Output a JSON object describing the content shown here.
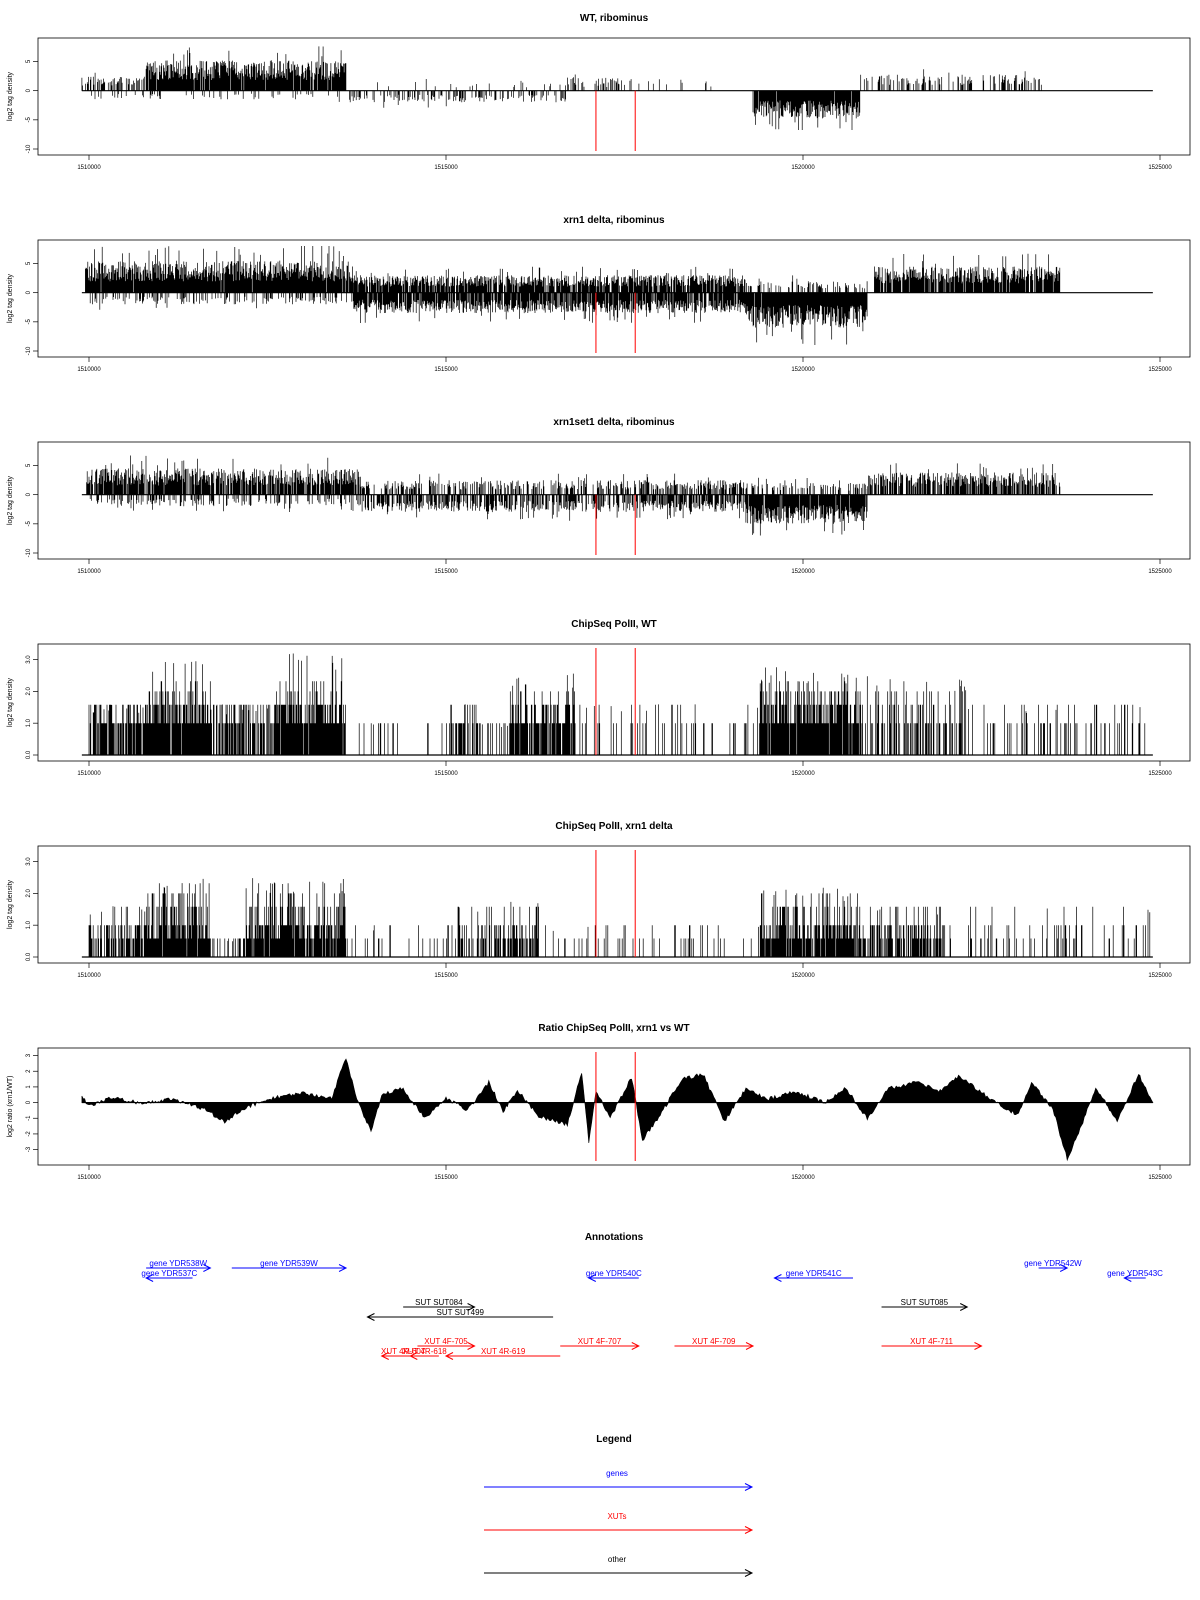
{
  "colors": {
    "gene": "#0000ff",
    "xut": "#ff0000",
    "other": "#000000",
    "marker": "#ff0000",
    "signal": "#000000"
  },
  "chart_data": [
    {
      "type": "bar",
      "title": "WT, ribominus",
      "ylabel": "log2 tag density",
      "xlim": [
        1510000,
        1525000
      ],
      "ylim": [
        -10,
        8
      ],
      "yticks": [
        "-10",
        "-5",
        "0",
        "5"
      ],
      "xticks": [
        "1510000",
        "1515000",
        "1520000",
        "1525000"
      ],
      "red_markers": [
        1517100,
        1517650
      ],
      "regions": [
        {
          "start": 1509900,
          "end": 1510800,
          "sign": 1,
          "amp": 2.5,
          "density": 0.5
        },
        {
          "start": 1510800,
          "end": 1513600,
          "sign": 1,
          "amp": 5.2,
          "density": 0.95
        },
        {
          "start": 1510000,
          "end": 1513600,
          "sign": -1,
          "amp": 1.5,
          "density": 0.12
        },
        {
          "start": 1513600,
          "end": 1516700,
          "sign": -1,
          "amp": 2.0,
          "density": 0.35
        },
        {
          "start": 1514000,
          "end": 1517300,
          "sign": 1,
          "amp": 1.5,
          "density": 0.08
        },
        {
          "start": 1516700,
          "end": 1517500,
          "sign": 1,
          "amp": 2.3,
          "density": 0.3
        },
        {
          "start": 1517500,
          "end": 1518800,
          "sign": 1,
          "amp": 2.0,
          "density": 0.08
        },
        {
          "start": 1519300,
          "end": 1520800,
          "sign": -1,
          "amp": 4.8,
          "density": 0.95
        },
        {
          "start": 1520800,
          "end": 1523500,
          "sign": 1,
          "amp": 2.8,
          "density": 0.3
        }
      ]
    },
    {
      "type": "bar",
      "title": "xrn1 delta, ribominus",
      "ylabel": "log2 tag density",
      "xlim": [
        1510000,
        1525000
      ],
      "ylim": [
        -10,
        8
      ],
      "yticks": [
        "-10",
        "-5",
        "0",
        "5"
      ],
      "xticks": [
        "1510000",
        "1515000",
        "1520000",
        "1525000"
      ],
      "red_markers": [
        1517100,
        1517650
      ],
      "regions": [
        {
          "start": 1509950,
          "end": 1513700,
          "sign": 1,
          "amp": 5.5,
          "density": 0.98
        },
        {
          "start": 1510000,
          "end": 1513700,
          "sign": -1,
          "amp": 2.0,
          "density": 0.3
        },
        {
          "start": 1513700,
          "end": 1519200,
          "sign": 1,
          "amp": 3.0,
          "density": 0.85
        },
        {
          "start": 1513700,
          "end": 1519200,
          "sign": -1,
          "amp": 3.5,
          "density": 0.85
        },
        {
          "start": 1519200,
          "end": 1520900,
          "sign": -1,
          "amp": 6.0,
          "density": 0.98
        },
        {
          "start": 1519200,
          "end": 1520900,
          "sign": 1,
          "amp": 2.0,
          "density": 0.3
        },
        {
          "start": 1521000,
          "end": 1523600,
          "sign": 1,
          "amp": 4.5,
          "density": 0.9
        }
      ]
    },
    {
      "type": "bar",
      "title": "xrn1set1 delta, ribominus",
      "ylabel": "log2 tag density",
      "xlim": [
        1510000,
        1525000
      ],
      "ylim": [
        -10,
        8
      ],
      "yticks": [
        "-10",
        "-5",
        "0",
        "5"
      ],
      "xticks": [
        "1510000",
        "1515000",
        "1520000",
        "1525000"
      ],
      "red_markers": [
        1517100,
        1517650
      ],
      "regions": [
        {
          "start": 1509950,
          "end": 1513800,
          "sign": 1,
          "amp": 4.5,
          "density": 0.85
        },
        {
          "start": 1510000,
          "end": 1513800,
          "sign": -1,
          "amp": 2.0,
          "density": 0.3
        },
        {
          "start": 1513800,
          "end": 1519200,
          "sign": 1,
          "amp": 2.5,
          "density": 0.5
        },
        {
          "start": 1513800,
          "end": 1519200,
          "sign": -1,
          "amp": 3.0,
          "density": 0.6
        },
        {
          "start": 1519200,
          "end": 1520900,
          "sign": -1,
          "amp": 5.0,
          "density": 0.95
        },
        {
          "start": 1519200,
          "end": 1520900,
          "sign": 1,
          "amp": 2.0,
          "density": 0.3
        },
        {
          "start": 1520900,
          "end": 1523600,
          "sign": 1,
          "amp": 3.8,
          "density": 0.7
        }
      ]
    },
    {
      "type": "bar",
      "title": "ChipSeq PolII, WT",
      "ylabel": "log2 tag density",
      "xlim": [
        1510000,
        1525000
      ],
      "ylim": [
        0,
        3.3
      ],
      "yticks": [
        "0.0",
        "1.0",
        "2.0",
        "3.0"
      ],
      "xticks": [
        "1510000",
        "1515000",
        "1520000",
        "1525000"
      ],
      "red_markers": [
        1517100,
        1517650
      ],
      "regions": [
        {
          "start": 1510000,
          "end": 1510800,
          "sign": 1,
          "amp": 1.6,
          "density": 0.8,
          "quant": [
            1.0,
            1.58
          ]
        },
        {
          "start": 1510800,
          "end": 1511700,
          "sign": 1,
          "amp": 3.2,
          "density": 0.98,
          "quant": [
            1.0,
            1.58,
            2.0,
            2.32
          ]
        },
        {
          "start": 1511700,
          "end": 1512600,
          "sign": 1,
          "amp": 1.6,
          "density": 0.7,
          "quant": [
            1.0,
            1.58
          ]
        },
        {
          "start": 1512600,
          "end": 1513600,
          "sign": 1,
          "amp": 3.3,
          "density": 0.98,
          "quant": [
            1.0,
            1.58,
            2.0,
            2.32
          ]
        },
        {
          "start": 1513600,
          "end": 1515000,
          "sign": 1,
          "amp": 1.0,
          "density": 0.1,
          "quant": [
            1.0
          ]
        },
        {
          "start": 1515000,
          "end": 1515500,
          "sign": 1,
          "amp": 1.6,
          "density": 0.6,
          "quant": [
            1.0,
            1.58
          ]
        },
        {
          "start": 1515500,
          "end": 1515900,
          "sign": 1,
          "amp": 1.0,
          "density": 0.2,
          "quant": [
            1.0
          ]
        },
        {
          "start": 1515900,
          "end": 1516800,
          "sign": 1,
          "amp": 2.6,
          "density": 0.8,
          "quant": [
            1.0,
            1.58,
            2.0
          ]
        },
        {
          "start": 1516800,
          "end": 1519400,
          "sign": 1,
          "amp": 1.6,
          "density": 0.15,
          "quant": [
            1.0,
            1.58
          ]
        },
        {
          "start": 1519400,
          "end": 1520800,
          "sign": 1,
          "amp": 2.8,
          "density": 0.95,
          "quant": [
            1.0,
            1.58,
            2.0,
            2.32
          ]
        },
        {
          "start": 1520800,
          "end": 1522300,
          "sign": 1,
          "amp": 2.5,
          "density": 0.55,
          "quant": [
            1.0,
            1.58,
            2.0
          ]
        },
        {
          "start": 1522300,
          "end": 1524800,
          "sign": 1,
          "amp": 1.6,
          "density": 0.2,
          "quant": [
            1.0,
            1.58
          ]
        }
      ]
    },
    {
      "type": "bar",
      "title": "ChipSeq PolII, xrn1 delta",
      "ylabel": "log2 tag density",
      "xlim": [
        1510000,
        1525000
      ],
      "ylim": [
        0,
        3.3
      ],
      "yticks": [
        "0.0",
        "1.0",
        "2.0",
        "3.0"
      ],
      "xticks": [
        "1510000",
        "1515000",
        "1520000",
        "1525000"
      ],
      "red_markers": [
        1517100,
        1517650
      ],
      "regions": [
        {
          "start": 1510000,
          "end": 1510800,
          "sign": 1,
          "amp": 1.6,
          "density": 0.6,
          "quant": [
            0.58,
            1.0,
            1.58
          ]
        },
        {
          "start": 1510800,
          "end": 1511700,
          "sign": 1,
          "amp": 2.5,
          "density": 0.98,
          "quant": [
            0.58,
            1.0,
            1.58,
            2.0,
            2.32
          ]
        },
        {
          "start": 1511700,
          "end": 1512200,
          "sign": 1,
          "amp": 0.6,
          "density": 0.3,
          "quant": [
            0.58
          ]
        },
        {
          "start": 1512200,
          "end": 1513600,
          "sign": 1,
          "amp": 2.5,
          "density": 0.95,
          "quant": [
            0.58,
            1.0,
            1.58,
            2.0,
            2.32
          ]
        },
        {
          "start": 1513600,
          "end": 1515000,
          "sign": 1,
          "amp": 1.0,
          "density": 0.1,
          "quant": [
            0.58,
            1.0
          ]
        },
        {
          "start": 1515000,
          "end": 1515900,
          "sign": 1,
          "amp": 1.6,
          "density": 0.4,
          "quant": [
            0.58,
            1.0,
            1.58
          ]
        },
        {
          "start": 1515900,
          "end": 1516300,
          "sign": 1,
          "amp": 1.8,
          "density": 0.8,
          "quant": [
            0.58,
            1.0,
            1.58
          ]
        },
        {
          "start": 1516300,
          "end": 1519400,
          "sign": 1,
          "amp": 1.0,
          "density": 0.12,
          "quant": [
            0.58,
            1.0
          ]
        },
        {
          "start": 1519400,
          "end": 1520800,
          "sign": 1,
          "amp": 2.2,
          "density": 0.9,
          "quant": [
            0.58,
            1.0,
            1.58,
            2.0
          ]
        },
        {
          "start": 1520800,
          "end": 1522000,
          "sign": 1,
          "amp": 1.6,
          "density": 0.6,
          "quant": [
            0.58,
            1.0,
            1.58
          ]
        },
        {
          "start": 1522000,
          "end": 1524900,
          "sign": 1,
          "amp": 1.6,
          "density": 0.15,
          "quant": [
            0.58,
            1.0,
            1.58
          ]
        }
      ]
    },
    {
      "type": "area",
      "title": "Ratio ChipSeq PolII, xrn1 vs WT",
      "ylabel": "log2 ratio (xrn1/WT)",
      "xlim": [
        1510000,
        1525000
      ],
      "ylim": [
        -3.6,
        3.1
      ],
      "yticks": [
        "-3",
        "-2",
        "-1",
        "0",
        "1",
        "2",
        "3"
      ],
      "xticks": [
        "1510000",
        "1515000",
        "1520000",
        "1525000"
      ],
      "red_markers": [
        1517100,
        1517650
      ],
      "profile": [
        [
          1509900,
          0.4
        ],
        [
          1510000,
          -0.2
        ],
        [
          1510300,
          0.3
        ],
        [
          1510700,
          0.0
        ],
        [
          1511200,
          0.2
        ],
        [
          1511600,
          -0.4
        ],
        [
          1511900,
          -1.2
        ],
        [
          1512200,
          -0.3
        ],
        [
          1512600,
          0.3
        ],
        [
          1513000,
          0.6
        ],
        [
          1513400,
          0.3
        ],
        [
          1513600,
          2.9
        ],
        [
          1513750,
          0.2
        ],
        [
          1513950,
          -1.8
        ],
        [
          1514100,
          0.5
        ],
        [
          1514400,
          0.9
        ],
        [
          1514700,
          -1.0
        ],
        [
          1515000,
          0.3
        ],
        [
          1515300,
          -0.5
        ],
        [
          1515600,
          1.3
        ],
        [
          1515800,
          -0.6
        ],
        [
          1516000,
          0.8
        ],
        [
          1516300,
          -0.9
        ],
        [
          1516700,
          -1.4
        ],
        [
          1516900,
          1.9
        ],
        [
          1517000,
          -2.5
        ],
        [
          1517100,
          0.8
        ],
        [
          1517300,
          -1.0
        ],
        [
          1517600,
          1.6
        ],
        [
          1517750,
          -2.4
        ],
        [
          1518000,
          -0.8
        ],
        [
          1518300,
          1.5
        ],
        [
          1518600,
          1.8
        ],
        [
          1518900,
          -1.2
        ],
        [
          1519200,
          0.9
        ],
        [
          1519500,
          0.2
        ],
        [
          1519900,
          0.7
        ],
        [
          1520300,
          0.0
        ],
        [
          1520600,
          0.9
        ],
        [
          1520900,
          -1.0
        ],
        [
          1521200,
          0.9
        ],
        [
          1521600,
          1.3
        ],
        [
          1521900,
          0.7
        ],
        [
          1522200,
          1.7
        ],
        [
          1522600,
          0.3
        ],
        [
          1523000,
          -0.8
        ],
        [
          1523200,
          1.3
        ],
        [
          1523500,
          -0.4
        ],
        [
          1523700,
          -3.6
        ],
        [
          1523900,
          -1.5
        ],
        [
          1524100,
          1.0
        ],
        [
          1524400,
          -1.2
        ],
        [
          1524700,
          1.8
        ],
        [
          1524900,
          0.0
        ]
      ]
    }
  ],
  "annotations": {
    "title": "Annotations",
    "features": [
      {
        "label": "gene YDR538W",
        "kind": "gene",
        "start": 1510800,
        "end": 1511700,
        "dir": 1,
        "row": 0
      },
      {
        "label": "gene YDR537C",
        "kind": "gene",
        "start": 1510800,
        "end": 1511450,
        "dir": -1,
        "row": 1
      },
      {
        "label": "gene YDR539W",
        "kind": "gene",
        "start": 1512000,
        "end": 1513600,
        "dir": 1,
        "row": 0
      },
      {
        "label": "gene YDR540C",
        "kind": "gene",
        "start": 1517000,
        "end": 1517700,
        "dir": -1,
        "row": 1
      },
      {
        "label": "gene YDR541C",
        "kind": "gene",
        "start": 1519600,
        "end": 1520700,
        "dir": -1,
        "row": 1
      },
      {
        "label": "gene YDR542W",
        "kind": "gene",
        "start": 1523300,
        "end": 1523700,
        "dir": 1,
        "row": 0
      },
      {
        "label": "gene YDR543C",
        "kind": "gene",
        "start": 1524500,
        "end": 1524800,
        "dir": -1,
        "row": 1
      },
      {
        "label": "SUT SUT084",
        "kind": "other",
        "start": 1514400,
        "end": 1515400,
        "dir": 1,
        "row": 2
      },
      {
        "label": "SUT SUT499",
        "kind": "other",
        "start": 1513900,
        "end": 1516500,
        "dir": -1,
        "row": 3
      },
      {
        "label": "SUT SUT085",
        "kind": "other",
        "start": 1521100,
        "end": 1522300,
        "dir": 1,
        "row": 2
      },
      {
        "label": "XUT 4F-705",
        "kind": "xut",
        "start": 1514600,
        "end": 1515400,
        "dir": 1,
        "row": 4
      },
      {
        "label": "XUT 4R-607",
        "kind": "xut",
        "start": 1514100,
        "end": 1514700,
        "dir": -1,
        "row": 5
      },
      {
        "label": "XUT 4R-618",
        "kind": "xut",
        "start": 1514500,
        "end": 1514900,
        "dir": -1,
        "row": 5
      },
      {
        "label": "XUT 4R-619",
        "kind": "xut",
        "start": 1515000,
        "end": 1516600,
        "dir": -1,
        "row": 5
      },
      {
        "label": "XUT 4F-707",
        "kind": "xut",
        "start": 1516600,
        "end": 1517700,
        "dir": 1,
        "row": 4
      },
      {
        "label": "XUT 4F-709",
        "kind": "xut",
        "start": 1518200,
        "end": 1519300,
        "dir": 1,
        "row": 4
      },
      {
        "label": "XUT 4F-711",
        "kind": "xut",
        "start": 1521100,
        "end": 1522500,
        "dir": 1,
        "row": 4
      }
    ]
  },
  "legend": {
    "title": "Legend",
    "items": [
      {
        "label": "genes",
        "kind": "gene"
      },
      {
        "label": "XUTs",
        "kind": "xut"
      },
      {
        "label": "other",
        "kind": "other"
      }
    ]
  }
}
